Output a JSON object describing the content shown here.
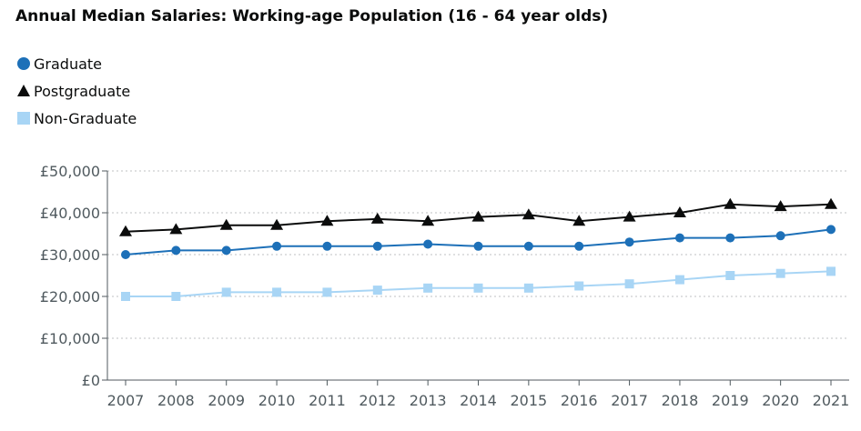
{
  "chart_data": {
    "type": "line",
    "title": "Annual Median Salaries: Working-age Population (16 - 64 year olds)",
    "x": [
      "2007",
      "2008",
      "2009",
      "2010",
      "2011",
      "2012",
      "2013",
      "2014",
      "2015",
      "2016",
      "2017",
      "2018",
      "2019",
      "2020",
      "2021"
    ],
    "y_ticks": [
      "£0",
      "£10,000",
      "£20,000",
      "£30,000",
      "£40,000",
      "£50,000"
    ],
    "ylim": [
      0,
      50000
    ],
    "grid": true,
    "legend_position": "top-left",
    "series": [
      {
        "name": "Graduate",
        "marker": "circle",
        "color": "#1d70b8",
        "values": [
          30000,
          31000,
          31000,
          32000,
          32000,
          32000,
          32500,
          32000,
          32000,
          32000,
          33000,
          34000,
          34000,
          34500,
          36000
        ]
      },
      {
        "name": "Postgraduate",
        "marker": "triangle",
        "color": "#0b0c0c",
        "values": [
          35500,
          36000,
          37000,
          37000,
          38000,
          38500,
          38000,
          39000,
          39500,
          38000,
          39000,
          40000,
          42000,
          41500,
          42000
        ]
      },
      {
        "name": "Non-Graduate",
        "marker": "square",
        "color": "#a8d5f5",
        "values": [
          20000,
          20000,
          21000,
          21000,
          21000,
          21500,
          22000,
          22000,
          22000,
          22500,
          23000,
          24000,
          25000,
          25500,
          26000
        ]
      }
    ]
  }
}
